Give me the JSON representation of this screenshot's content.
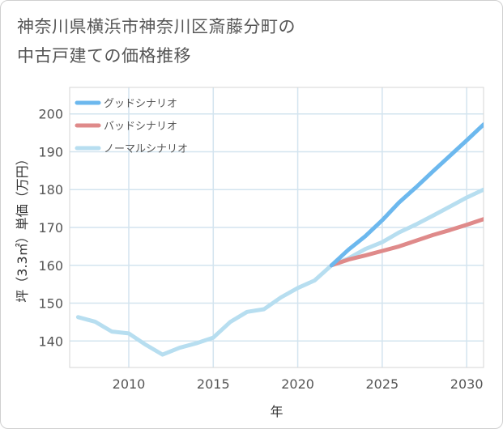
{
  "title_lines": [
    "神奈川県横浜市神奈川区斎藤分町の",
    "中古戸建ての価格推移"
  ],
  "chart_data": {
    "type": "line",
    "title": "神奈川県横浜市神奈川区斎藤分町の中古戸建ての価格推移",
    "xlabel": "年",
    "ylabel": "坪（3.3㎡）単価（万円）",
    "xlim": [
      2006.5,
      2031
    ],
    "ylim": [
      133,
      207
    ],
    "xticks": [
      2010,
      2015,
      2020,
      2025,
      2030
    ],
    "yticks": [
      140,
      150,
      160,
      170,
      180,
      190,
      200
    ],
    "grid": true,
    "legend_position": "top-left",
    "series": [
      {
        "name": "グッドシナリオ",
        "color": "#6cb8ee",
        "x": [
          2022,
          2023,
          2024,
          2025,
          2026,
          2027,
          2028,
          2029,
          2030,
          2031
        ],
        "y": [
          160.0,
          164.1,
          167.7,
          171.9,
          176.6,
          180.6,
          184.8,
          188.9,
          193.0,
          197.2
        ]
      },
      {
        "name": "バッドシナリオ",
        "color": "#df8a8a",
        "x": [
          2022,
          2023,
          2024,
          2025,
          2026,
          2027,
          2028,
          2029,
          2030,
          2031
        ],
        "y": [
          160.0,
          161.5,
          162.6,
          163.8,
          165.0,
          166.5,
          168.0,
          169.3,
          170.7,
          172.2
        ]
      },
      {
        "name": "ノーマルシナリオ",
        "color": "#b7def0",
        "x": [
          2007,
          2008,
          2009,
          2010,
          2011,
          2012,
          2013,
          2014,
          2015,
          2016,
          2017,
          2018,
          2019,
          2020,
          2021,
          2022,
          2023,
          2024,
          2025,
          2026,
          2027,
          2028,
          2029,
          2030,
          2031
        ],
        "y": [
          146.3,
          145.1,
          142.5,
          142.0,
          139.0,
          136.4,
          138.2,
          139.4,
          140.9,
          145.0,
          147.7,
          148.4,
          151.5,
          154.0,
          156.0,
          160.0,
          161.8,
          164.3,
          166.1,
          168.7,
          170.8,
          173.1,
          175.5,
          177.9,
          180.0
        ]
      }
    ]
  }
}
